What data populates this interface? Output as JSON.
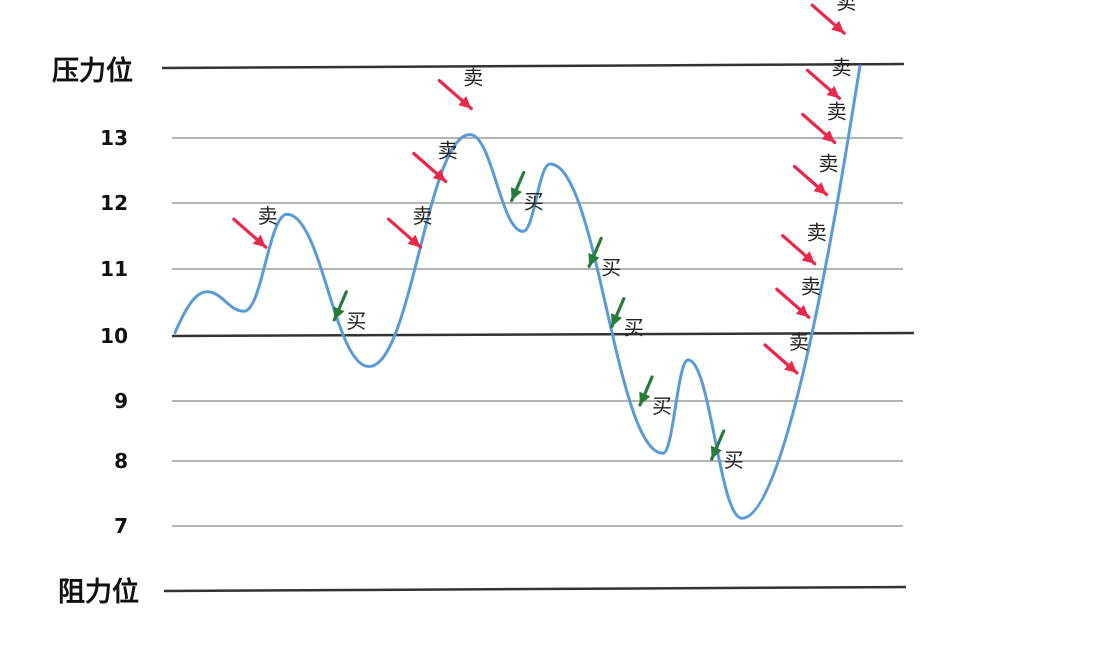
{
  "boundaries": {
    "upper_label": "压力位",
    "lower_label": "阻力位"
  },
  "levels": [
    {
      "label": "13",
      "price": 13
    },
    {
      "label": "12",
      "price": 12
    },
    {
      "label": "11",
      "price": 11
    },
    {
      "label": "10",
      "price": 10
    },
    {
      "label": "9",
      "price": 9
    },
    {
      "label": "8",
      "price": 8
    },
    {
      "label": "7",
      "price": 7
    }
  ],
  "signal_text": {
    "sell": "卖",
    "buy": "买"
  },
  "colors": {
    "curve": "#5b9bd5",
    "sell_arrow": "#e8294b",
    "buy_arrow": "#2a7a3a",
    "grid": "#888888",
    "boundary": "#333333"
  },
  "price_curve": [
    {
      "t": 0,
      "price": 10.05
    },
    {
      "t": 1,
      "price": 10.66
    },
    {
      "t": 2,
      "price": 10.37
    },
    {
      "t": 3,
      "price": 11.83
    },
    {
      "t": 4,
      "price": 9.53
    },
    {
      "t": 5,
      "price": 13.05
    },
    {
      "t": 6,
      "price": 11.57
    },
    {
      "t": 7,
      "price": 12.6
    },
    {
      "t": 8,
      "price": 8.13
    },
    {
      "t": 9,
      "price": 9.63
    },
    {
      "t": 10,
      "price": 7.12
    },
    {
      "t": 11,
      "price": 14.05
    }
  ],
  "signals": [
    {
      "type": "sell",
      "t": 2.6,
      "price": 11.3
    },
    {
      "type": "buy",
      "t": 3.65,
      "price": 10.3
    },
    {
      "type": "sell",
      "t": 4.55,
      "price": 11.3
    },
    {
      "type": "sell",
      "t": 4.8,
      "price": 12.3
    },
    {
      "type": "sell",
      "t": 5.1,
      "price": 13.4
    },
    {
      "type": "buy",
      "t": 5.9,
      "price": 12.1
    },
    {
      "type": "buy",
      "t": 7.4,
      "price": 11.1
    },
    {
      "type": "buy",
      "t": 7.6,
      "price": 10.2
    },
    {
      "type": "buy",
      "t": 7.85,
      "price": 9.0
    },
    {
      "type": "buy",
      "t": 9.55,
      "price": 8.1
    },
    {
      "type": "sell",
      "t": 10.5,
      "price": 9.4
    },
    {
      "type": "sell",
      "t": 10.6,
      "price": 10.25
    },
    {
      "type": "sell",
      "t": 10.65,
      "price": 11.05
    },
    {
      "type": "sell",
      "t": 10.75,
      "price": 12.1
    },
    {
      "type": "sell",
      "t": 10.82,
      "price": 12.9
    },
    {
      "type": "sell",
      "t": 10.86,
      "price": 13.55
    },
    {
      "type": "sell",
      "t": 10.9,
      "price": 14.5
    }
  ]
}
